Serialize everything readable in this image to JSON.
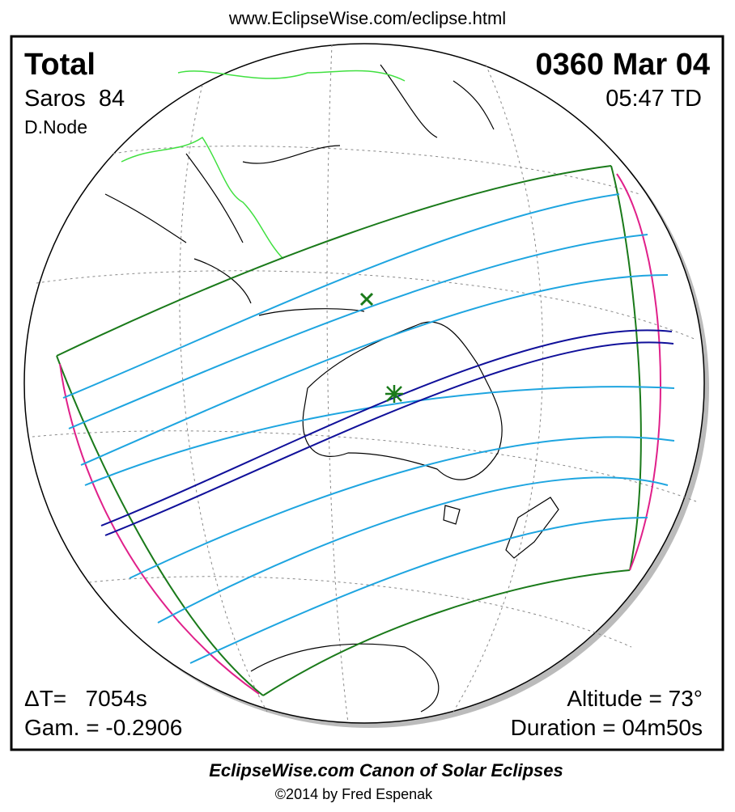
{
  "header": {
    "url": "www.EclipseWise.com/eclipse.html"
  },
  "eclipse": {
    "type": "Total",
    "date": "0360 Mar 04",
    "saros": "Saros  84",
    "time": "05:47 TD",
    "node": "D.Node",
    "delta_t": "ΔT=   7054s",
    "gamma": "Gam. = -0.2906",
    "altitude": "Altitude = 73°",
    "duration": "Duration = 04m50s"
  },
  "footer": {
    "title": "EclipseWise.com Canon of Solar Eclipses",
    "copyright": "©2014 by Fred Espenak"
  }
}
